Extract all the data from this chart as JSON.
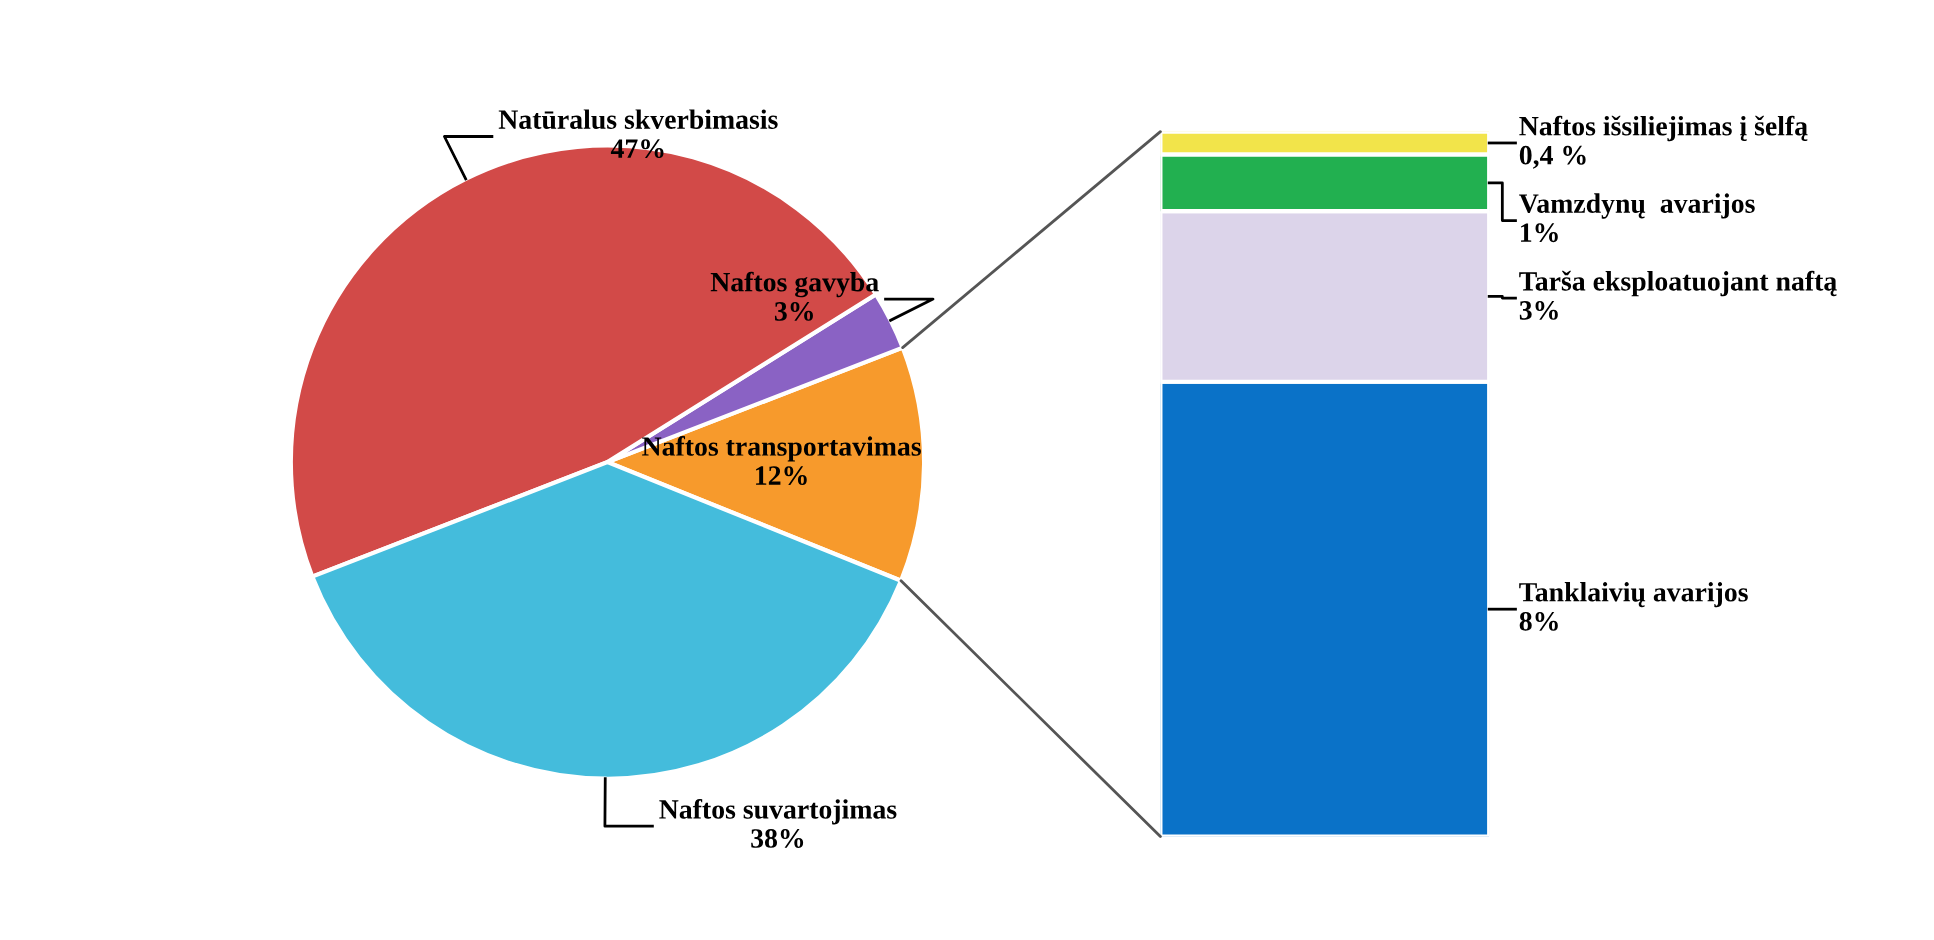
{
  "chart_data": [
    {
      "type": "pie",
      "categories": [
        "Naftos transportavimas",
        "Naftos gavyba",
        "Natūralus skverbimasis",
        "Naftos suvartojimas"
      ],
      "values": [
        12,
        3,
        47,
        38
      ],
      "colors": [
        "#f79a2c",
        "#8a62c4",
        "#d24a48",
        "#44bcdc"
      ],
      "value_labels": [
        "12%",
        "3%",
        "47%",
        "38%"
      ],
      "legend": false
    },
    {
      "type": "bar",
      "stacked": true,
      "categories": [
        null
      ],
      "legend": false,
      "series": [
        {
          "name": "Tanklaivių avarijos",
          "color": "#0a72c8",
          "values": [
            8
          ],
          "value_labels": [
            "8%"
          ]
        },
        {
          "name": "Tarša eksploatuojant naftą",
          "color": "#dcd4ea",
          "values": [
            3
          ],
          "value_labels": [
            "3%"
          ]
        },
        {
          "name": "Vamzdynų  avarijos",
          "color": "#22b050",
          "values": [
            1
          ],
          "value_labels": [
            "1%"
          ]
        },
        {
          "name": "Naftos išsiliejimas į šelfą",
          "color": "#f2e44a",
          "values": [
            0.4
          ],
          "value_labels": [
            "0,4 %"
          ]
        }
      ]
    }
  ]
}
